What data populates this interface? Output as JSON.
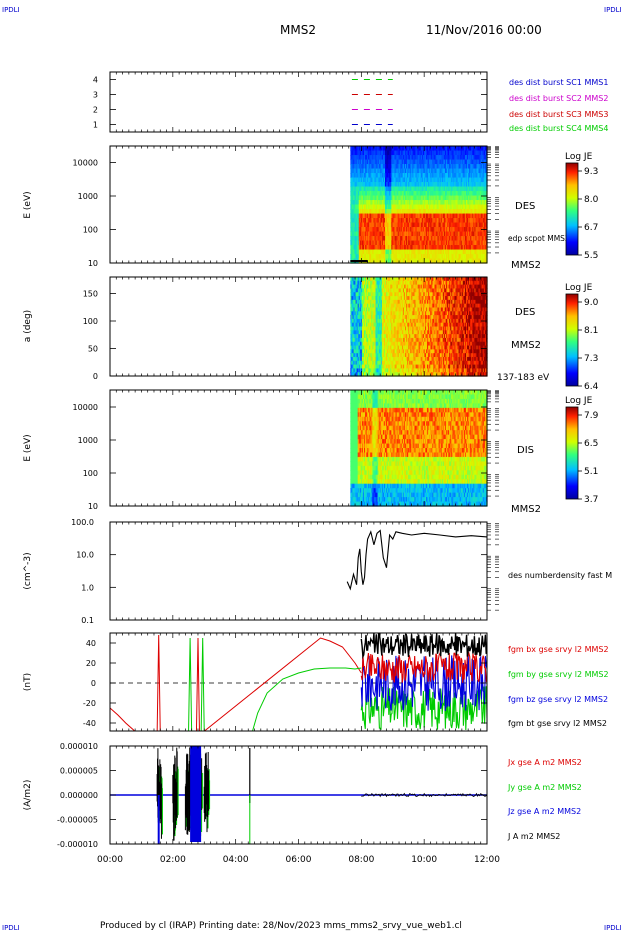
{
  "header": {
    "left_tag": "IPDLI",
    "right_tag": "IPDLI",
    "spacecraft": "MMS2",
    "date": "11/Nov/2016 00:00"
  },
  "footer": {
    "text": "Produced by cl (IRAP)   Printing date: 28/Nov/2023   mms_mms2_srvy_vue_web1.cl",
    "left_tag": "IPDLI",
    "right_tag": "IPDLI"
  },
  "time_axis": {
    "ticks": [
      "00:00",
      "02:00",
      "04:00",
      "06:00",
      "08:00",
      "10:00",
      "12:00"
    ],
    "range_hours": [
      0,
      12
    ]
  },
  "chart_data": [
    {
      "type": "line",
      "panel": "burst",
      "yticks": [
        "1",
        "2",
        "3",
        "4"
      ],
      "ylim": [
        0.5,
        4.5
      ],
      "series": [
        {
          "name": "des dist burst SC1 MMS1",
          "color": "#0000cc",
          "level": 1,
          "x_hours": [
            7.7,
            9.0
          ]
        },
        {
          "name": "des dist burst SC2 MMS2",
          "color": "#cc00cc",
          "level": 2,
          "x_hours": [
            7.7,
            9.0
          ]
        },
        {
          "name": "des dist burst SC3 MMS3",
          "color": "#cc0000",
          "level": 3,
          "x_hours": [
            7.7,
            9.0
          ]
        },
        {
          "name": "des dist burst SC4 MMS4",
          "color": "#00cc00",
          "level": 4,
          "x_hours": [
            7.7,
            9.0
          ]
        }
      ]
    },
    {
      "type": "heatmap",
      "panel": "des_energy",
      "ylabel": "E (eV)",
      "yscale": "log",
      "yticks": [
        "10",
        "100",
        "1000",
        "10000"
      ],
      "ylim": [
        10,
        30000
      ],
      "start_hour": 7.65,
      "side_label": "DES",
      "side_sub": "edp scpot MMS2",
      "spacecraft_label": "MMS2",
      "colorbar": {
        "title": "Log JE",
        "ticks": [
          "9.3",
          "8.0",
          "6.7",
          "5.5"
        ],
        "range": [
          5.5,
          9.3
        ]
      }
    },
    {
      "type": "heatmap",
      "panel": "des_pitch",
      "ylabel": "a (deg)",
      "yticks": [
        "0",
        "50",
        "100",
        "150"
      ],
      "ylim": [
        0,
        180
      ],
      "start_hour": 7.65,
      "side_label": "DES",
      "spacecraft_label": "MMS2",
      "energy_label": "137-183 eV",
      "colorbar": {
        "title": "Log JE",
        "ticks": [
          "9.0",
          "8.1",
          "7.3",
          "6.4"
        ],
        "range": [
          6.4,
          9.0
        ]
      }
    },
    {
      "type": "heatmap",
      "panel": "dis_energy",
      "ylabel": "E (eV)",
      "yscale": "log",
      "yticks": [
        "10",
        "100",
        "1000",
        "10000"
      ],
      "ylim": [
        10,
        30000
      ],
      "start_hour": 7.65,
      "side_label": "DIS",
      "spacecraft_label": "MMS2",
      "colorbar": {
        "title": "Log JE",
        "ticks": [
          "7.9",
          "6.5",
          "5.1",
          "3.7"
        ],
        "range": [
          3.7,
          7.9
        ]
      }
    },
    {
      "type": "line",
      "panel": "density",
      "ylabel": "(cm^-3)",
      "yscale": "log",
      "yticks": [
        "0.1",
        "1.0",
        "10.0",
        "100.0"
      ],
      "ylim": [
        0.1,
        100
      ],
      "series": [
        {
          "name": "des numberdensity fast M",
          "color": "#000000",
          "x": [
            7.55,
            7.65,
            7.75,
            7.85,
            7.9,
            7.95,
            8.0,
            8.05,
            8.1,
            8.15,
            8.2,
            8.3,
            8.4,
            8.5,
            8.6,
            8.7,
            8.8,
            8.9,
            9.0,
            9.1,
            9.3,
            9.6,
            10.0,
            10.5,
            11.0,
            11.5,
            12.0
          ],
          "y": [
            1.5,
            0.9,
            2.5,
            1.2,
            8.0,
            15.0,
            3.0,
            1.2,
            2.0,
            10.0,
            30.0,
            50.0,
            20.0,
            45.0,
            55.0,
            8.0,
            4.0,
            40.0,
            30.0,
            50.0,
            45.0,
            40.0,
            45.0,
            40.0,
            35.0,
            38.0,
            35.0
          ]
        }
      ]
    },
    {
      "type": "line",
      "panel": "fgm",
      "ylabel": "(nT)",
      "yticks": [
        "-40",
        "-20",
        "0",
        "20",
        "40"
      ],
      "ylim": [
        -48,
        50
      ],
      "series": [
        {
          "name": "fgm bx gse srvy l2 MMS2",
          "color": "#dd0000",
          "x": [
            0.0,
            0.25,
            0.5,
            0.75,
            0.9,
            1.5,
            1.55,
            1.6,
            2.75,
            2.8,
            2.85,
            6.7,
            7.0,
            7.4,
            7.8,
            8.0
          ],
          "y": [
            -25.0,
            -32.0,
            -40.0,
            -47.0,
            -52.0,
            -52.0,
            48.0,
            -52.0,
            -52.0,
            45.0,
            -52.0,
            45.0,
            42.0,
            36.0,
            20.0,
            10.0
          ]
        },
        {
          "name": "fgm by gse srvy l2 MMS2",
          "color": "#00cc00",
          "x": [
            2.5,
            2.55,
            2.6,
            2.9,
            2.95,
            3.0,
            4.5,
            4.7,
            5.0,
            5.5,
            6.0,
            6.5,
            7.0,
            7.5,
            7.8,
            8.0
          ],
          "y": [
            -52.0,
            45.0,
            -52.0,
            -52.0,
            45.0,
            -52.0,
            -52.0,
            -30.0,
            -10.0,
            4.0,
            10.0,
            14.0,
            15.0,
            15.0,
            14.0,
            15.0
          ]
        },
        {
          "name": "fgm bz gse srvy l2 MMS2",
          "color": "#0000dd",
          "x": [
            8.0
          ],
          "y": [
            10.0
          ]
        },
        {
          "name": "fgm bt gse srvy l2 MMS2",
          "color": "#000000",
          "x": [
            8.0
          ],
          "y": [
            30.0
          ]
        }
      ]
    },
    {
      "type": "line",
      "panel": "current",
      "ylabel": "(A/m2)",
      "yticks": [
        "-0.000010",
        "-0.000005",
        "0.000000",
        "0.000005",
        "0.000010"
      ],
      "ylim": [
        -1e-05,
        1e-05
      ],
      "series": [
        {
          "name": "Jx gse A m2 MMS2",
          "color": "#dd0000"
        },
        {
          "name": "Jy gse A m2 MMS2",
          "color": "#00cc00"
        },
        {
          "name": "Jz gse A m2 MMS2",
          "color": "#0000dd"
        },
        {
          "name": "J A m2 MMS2",
          "color": "#000000"
        }
      ]
    }
  ]
}
